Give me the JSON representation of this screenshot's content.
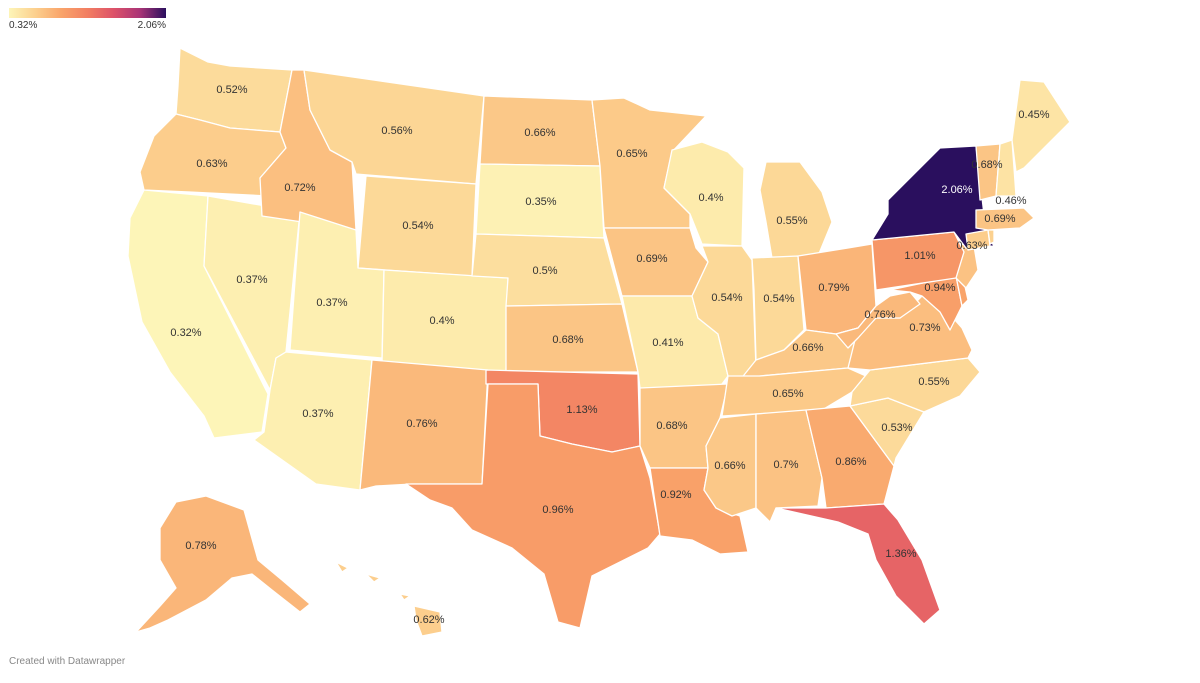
{
  "legend": {
    "min_label": "0.32%",
    "max_label": "2.06%",
    "min": 0.32,
    "max": 2.06,
    "colors": [
      "#fdf5b8",
      "#fcd08e",
      "#f9a46a",
      "#f27e62",
      "#dd5269",
      "#a93477",
      "#2a0f5e"
    ]
  },
  "credit": "Created with Datawrapper",
  "map": {
    "border_color": "#ffffff",
    "states": [
      {
        "id": "WA",
        "value": 0.52,
        "label": "0.52%"
      },
      {
        "id": "OR",
        "value": 0.63,
        "label": "0.63%"
      },
      {
        "id": "CA",
        "value": 0.32,
        "label": "0.32%"
      },
      {
        "id": "NV",
        "value": 0.37,
        "label": "0.37%"
      },
      {
        "id": "ID",
        "value": 0.72,
        "label": "0.72%"
      },
      {
        "id": "MT",
        "value": 0.56,
        "label": "0.56%"
      },
      {
        "id": "WY",
        "value": 0.54,
        "label": "0.54%"
      },
      {
        "id": "UT",
        "value": 0.37,
        "label": "0.37%"
      },
      {
        "id": "AZ",
        "value": 0.37,
        "label": "0.37%"
      },
      {
        "id": "CO",
        "value": 0.4,
        "label": "0.4%"
      },
      {
        "id": "NM",
        "value": 0.76,
        "label": "0.76%"
      },
      {
        "id": "ND",
        "value": 0.66,
        "label": "0.66%"
      },
      {
        "id": "SD",
        "value": 0.35,
        "label": "0.35%"
      },
      {
        "id": "NE",
        "value": 0.5,
        "label": "0.5%"
      },
      {
        "id": "KS",
        "value": 0.68,
        "label": "0.68%"
      },
      {
        "id": "OK",
        "value": 1.13,
        "label": "1.13%"
      },
      {
        "id": "TX",
        "value": 0.96,
        "label": "0.96%"
      },
      {
        "id": "MN",
        "value": 0.65,
        "label": "0.65%"
      },
      {
        "id": "IA",
        "value": 0.69,
        "label": "0.69%"
      },
      {
        "id": "MO",
        "value": 0.41,
        "label": "0.41%"
      },
      {
        "id": "AR",
        "value": 0.68,
        "label": "0.68%"
      },
      {
        "id": "LA",
        "value": 0.92,
        "label": "0.92%"
      },
      {
        "id": "WI",
        "value": 0.4,
        "label": "0.4%"
      },
      {
        "id": "IL",
        "value": 0.54,
        "label": "0.54%"
      },
      {
        "id": "MI",
        "value": 0.55,
        "label": "0.55%"
      },
      {
        "id": "IN",
        "value": 0.54,
        "label": "0.54%"
      },
      {
        "id": "OH",
        "value": 0.79,
        "label": "0.79%"
      },
      {
        "id": "KY",
        "value": 0.66,
        "label": "0.66%"
      },
      {
        "id": "TN",
        "value": 0.65,
        "label": "0.65%"
      },
      {
        "id": "MS",
        "value": 0.66,
        "label": "0.66%"
      },
      {
        "id": "AL",
        "value": 0.7,
        "label": "0.7%"
      },
      {
        "id": "GA",
        "value": 0.86,
        "label": "0.86%"
      },
      {
        "id": "FL",
        "value": 1.36,
        "label": "1.36%"
      },
      {
        "id": "SC",
        "value": 0.53,
        "label": "0.53%"
      },
      {
        "id": "NC",
        "value": 0.55,
        "label": "0.55%"
      },
      {
        "id": "VA",
        "value": 0.73,
        "label": "0.73%"
      },
      {
        "id": "WV",
        "value": 0.76,
        "label": "0.76%"
      },
      {
        "id": "MD",
        "value": 0.94,
        "label": "0.94%"
      },
      {
        "id": "DE",
        "value": 0.9,
        "label": ""
      },
      {
        "id": "NJ",
        "value": 0.7,
        "label": ""
      },
      {
        "id": "PA",
        "value": 1.01,
        "label": "1.01%"
      },
      {
        "id": "NY",
        "value": 2.06,
        "label": "2.06%"
      },
      {
        "id": "CT",
        "value": 0.63,
        "label": "0.63%"
      },
      {
        "id": "RI",
        "value": 0.6,
        "label": ""
      },
      {
        "id": "MA",
        "value": 0.69,
        "label": "0.69%"
      },
      {
        "id": "VT",
        "value": 0.68,
        "label": "0.68%"
      },
      {
        "id": "NH",
        "value": 0.46,
        "label": "0.46%"
      },
      {
        "id": "ME",
        "value": 0.45,
        "label": "0.45%"
      },
      {
        "id": "AK",
        "value": 0.78,
        "label": "0.78%"
      },
      {
        "id": "HI",
        "value": 0.62,
        "label": "0.62%"
      }
    ]
  }
}
